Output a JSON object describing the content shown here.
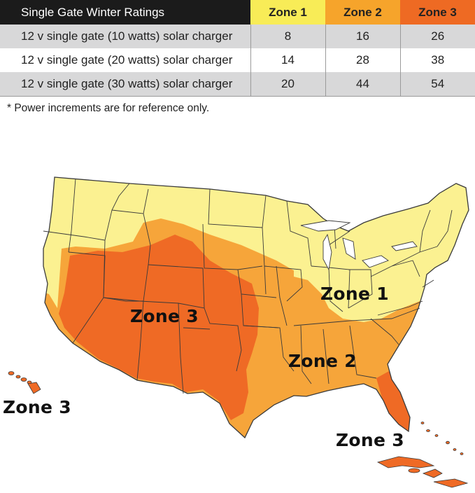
{
  "table": {
    "title": "Single Gate Winter Ratings",
    "zones": [
      "Zone 1",
      "Zone 2",
      "Zone 3"
    ],
    "rows": [
      {
        "label": "12 v single gate (10 watts) solar charger",
        "values": [
          "8",
          "16",
          "26"
        ]
      },
      {
        "label": "12 v single gate (20 watts) solar charger",
        "values": [
          "14",
          "28",
          "38"
        ]
      },
      {
        "label": "12 v single gate (30 watts) solar charger",
        "values": [
          "20",
          "44",
          "54"
        ]
      }
    ]
  },
  "footnote": "* Power increments are for reference only.",
  "map": {
    "labels": {
      "zone1": "Zone 1",
      "zone2": "Zone 2",
      "zone3_west": "Zone 3",
      "zone3_hawaii": "Zone 3",
      "zone3_caribbean": "Zone 3"
    },
    "colors": {
      "zone1": "#fbf191",
      "zone2": "#f6a53a",
      "zone3": "#ef6a25",
      "border": "#3a3a3a"
    }
  }
}
